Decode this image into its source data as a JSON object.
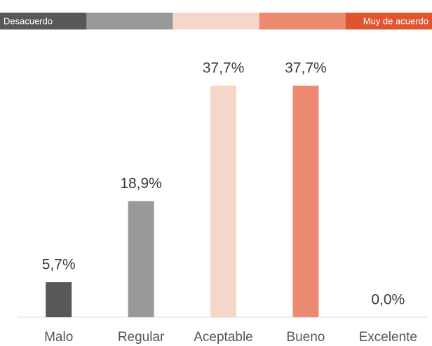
{
  "chart_data": {
    "type": "bar",
    "scale_labels": {
      "low": "Desacuerdo",
      "high": "Muy de acuerdo"
    },
    "categories": [
      "Malo",
      "Regular",
      "Aceptable",
      "Bueno",
      "Excelente"
    ],
    "values": [
      5.7,
      18.9,
      37.7,
      37.7,
      0.0
    ],
    "value_labels": [
      "5,7%",
      "18,9%",
      "37,7%",
      "37,7%",
      "0,0%"
    ],
    "colors": [
      "#58585a",
      "#98999b",
      "#f7d6ca",
      "#ec8b70",
      "#e0542f"
    ]
  }
}
